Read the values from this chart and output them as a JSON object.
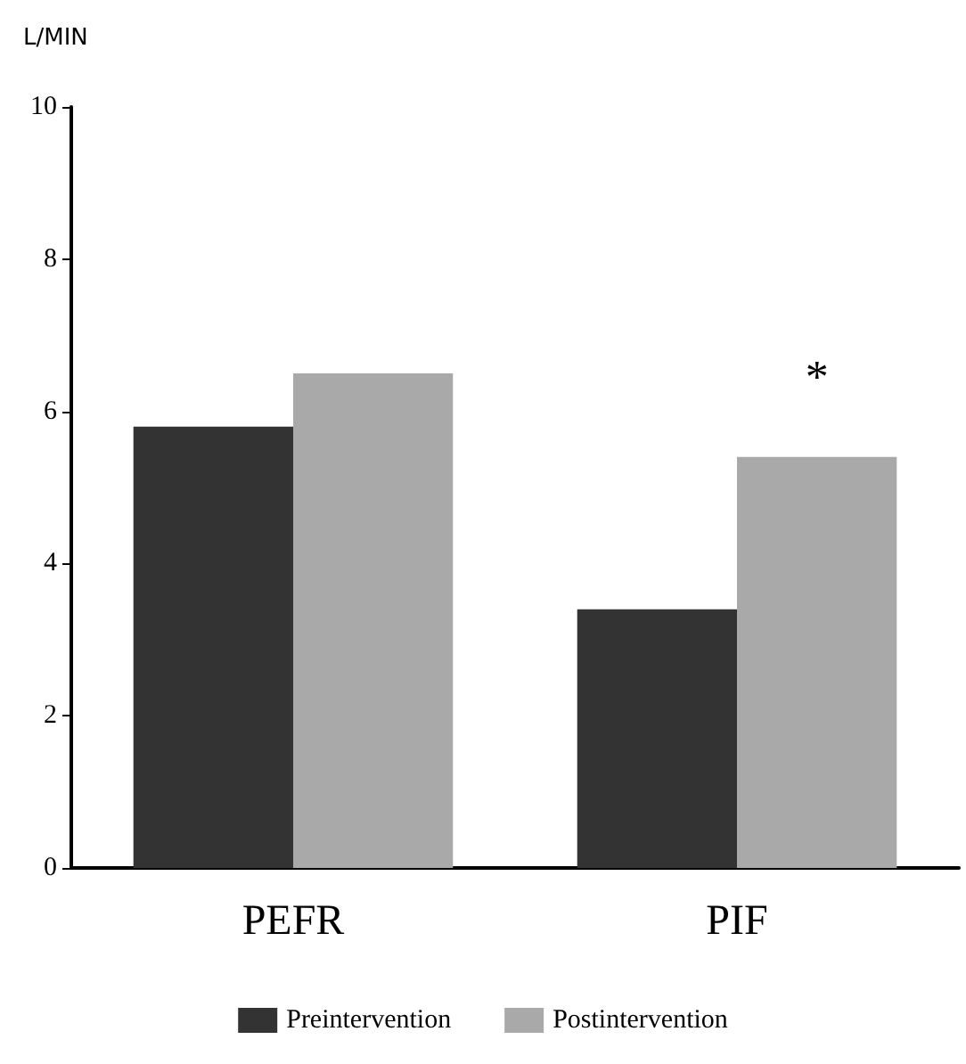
{
  "chart_data": {
    "type": "bar",
    "ylabel": "L/MIN",
    "categories": [
      "PEFR",
      "PIF"
    ],
    "series": [
      {
        "name": "Preintervention",
        "color": "#333333",
        "values": [
          5.8,
          3.4
        ]
      },
      {
        "name": "Postintervention",
        "color": "#a9a9a9",
        "values": [
          6.5,
          5.4
        ]
      }
    ],
    "ylim": [
      0,
      10
    ],
    "yticks": [
      0,
      2,
      4,
      6,
      8,
      10
    ],
    "grid": false,
    "legend": "bottom",
    "annotations": [
      "*"
    ]
  }
}
